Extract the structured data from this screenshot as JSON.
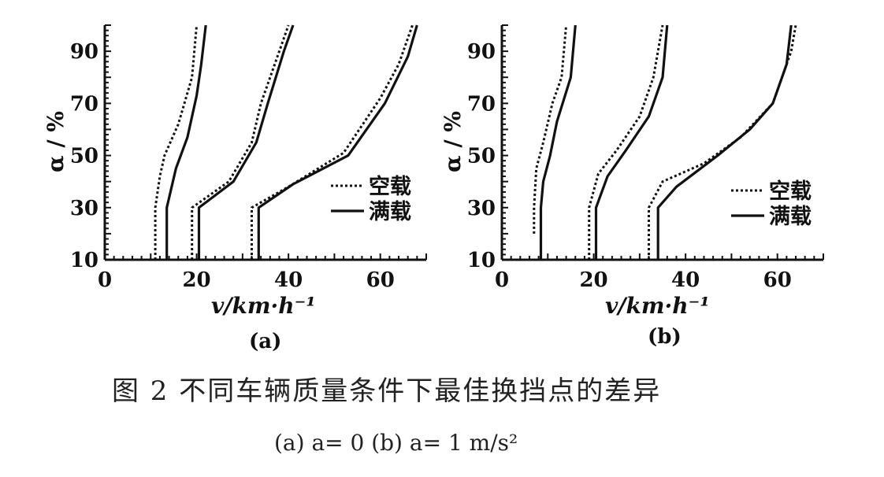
{
  "figure": {
    "caption": "图 2 不同车辆质量条件下最佳换挡点的差异",
    "subcaption": "(a) a= 0 (b) a= 1 m/s²"
  },
  "chart_data": [
    {
      "type": "line",
      "panel_label": "(a)",
      "xlabel": "v/km·h⁻¹",
      "ylabel": "α / %",
      "xlim": [
        0,
        70
      ],
      "ylim": [
        10,
        100
      ],
      "xticks": [
        "0",
        "20",
        "40",
        "60"
      ],
      "yticks": [
        "10",
        "30",
        "50",
        "70",
        "90"
      ],
      "legend": {
        "position": "right-middle",
        "entries": [
          "空载",
          "满载"
        ]
      },
      "series": [
        {
          "name": "空载",
          "style": "dotted",
          "curves": [
            [
              [
                11,
                10
              ],
              [
                11,
                30
              ],
              [
                12,
                42
              ],
              [
                13,
                50
              ],
              [
                16,
                62
              ],
              [
                19,
                80
              ],
              [
                20,
                100
              ]
            ],
            [
              [
                19,
                10
              ],
              [
                19,
                30
              ],
              [
                27,
                40
              ],
              [
                32,
                55
              ],
              [
                34,
                70
              ],
              [
                38,
                90
              ],
              [
                40,
                100
              ]
            ],
            [
              [
                32,
                10
              ],
              [
                32,
                30
              ],
              [
                40,
                38
              ],
              [
                52,
                51
              ],
              [
                60,
                72
              ],
              [
                64,
                85
              ],
              [
                67,
                100
              ]
            ]
          ]
        },
        {
          "name": "满载",
          "style": "solid",
          "curves": [
            [
              [
                13.5,
                10
              ],
              [
                13.5,
                30
              ],
              [
                15.5,
                45
              ],
              [
                18,
                57
              ],
              [
                20,
                73
              ],
              [
                21,
                85
              ],
              [
                22,
                100
              ]
            ],
            [
              [
                20.5,
                10
              ],
              [
                20.5,
                30
              ],
              [
                28,
                40
              ],
              [
                33,
                55
              ],
              [
                35.5,
                70
              ],
              [
                39,
                90
              ],
              [
                41,
                100
              ]
            ],
            [
              [
                33.5,
                10
              ],
              [
                33.5,
                30
              ],
              [
                41,
                39
              ],
              [
                53,
                50
              ],
              [
                61,
                70
              ],
              [
                66,
                88
              ],
              [
                68,
                100
              ]
            ]
          ]
        }
      ]
    },
    {
      "type": "line",
      "panel_label": "(b)",
      "xlabel": "v/km·h⁻¹",
      "ylabel": "α / %",
      "xlim": [
        0,
        70
      ],
      "ylim": [
        10,
        100
      ],
      "xticks": [
        "0",
        "20",
        "40",
        "60"
      ],
      "yticks": [
        "10",
        "30",
        "50",
        "70",
        "90"
      ],
      "legend": {
        "position": "right-middle",
        "entries": [
          "空载",
          "满载"
        ]
      },
      "series": [
        {
          "name": "空载",
          "style": "dotted",
          "curves": [
            [
              [
                7,
                20
              ],
              [
                7,
                30
              ],
              [
                7.5,
                45
              ],
              [
                9,
                55
              ],
              [
                11,
                70
              ],
              [
                13,
                80
              ],
              [
                14,
                100
              ]
            ],
            [
              [
                19,
                10
              ],
              [
                19,
                30
              ],
              [
                21,
                43
              ],
              [
                25,
                52
              ],
              [
                30,
                65
              ],
              [
                33,
                80
              ],
              [
                35,
                100
              ]
            ],
            [
              [
                32,
                10
              ],
              [
                32,
                30
              ],
              [
                35,
                40
              ],
              [
                44,
                47
              ],
              [
                52,
                57
              ],
              [
                59,
                70
              ],
              [
                63,
                90
              ],
              [
                64,
                100
              ]
            ]
          ]
        },
        {
          "name": "满载",
          "style": "solid",
          "curves": [
            [
              [
                8.5,
                10
              ],
              [
                8.5,
                30
              ],
              [
                9,
                40
              ],
              [
                10.5,
                50
              ],
              [
                12,
                63
              ],
              [
                15,
                80
              ],
              [
                16,
                100
              ]
            ],
            [
              [
                20.5,
                10
              ],
              [
                20.5,
                30
              ],
              [
                23,
                42
              ],
              [
                27,
                52
              ],
              [
                32,
                65
              ],
              [
                35,
                80
              ],
              [
                36,
                100
              ]
            ],
            [
              [
                34,
                10
              ],
              [
                34,
                30
              ],
              [
                38,
                38
              ],
              [
                47,
                50
              ],
              [
                54,
                60
              ],
              [
                59,
                70
              ],
              [
                62,
                85
              ],
              [
                63,
                100
              ]
            ]
          ]
        }
      ]
    }
  ]
}
